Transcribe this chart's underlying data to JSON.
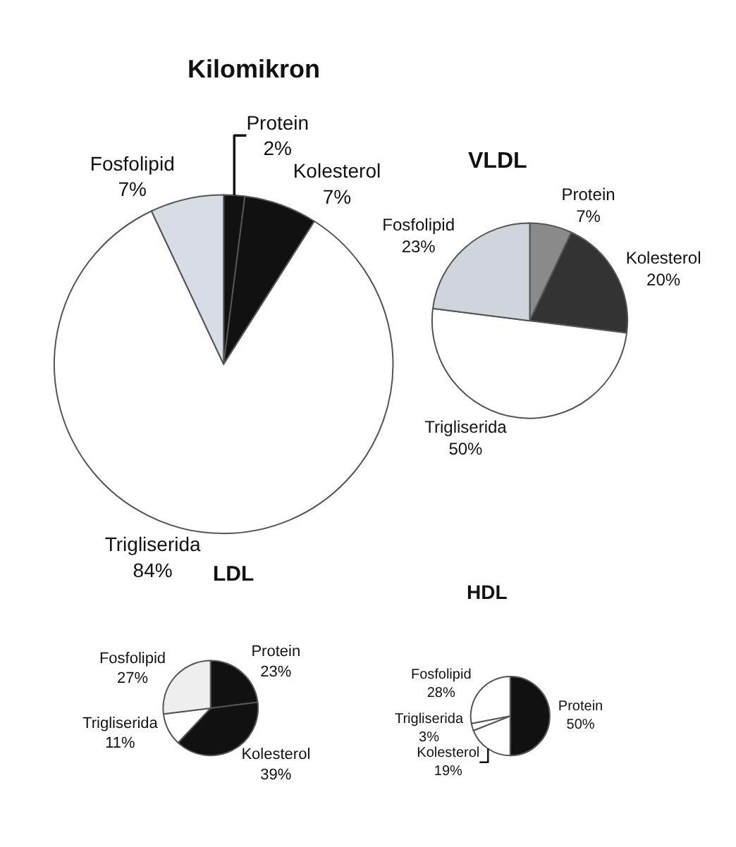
{
  "chart_data": [
    {
      "type": "pie",
      "title": "Kilomikron",
      "categories": [
        "Protein",
        "Kolesterol",
        "Trigliserida",
        "Fosfolipid"
      ],
      "values": [
        2,
        7,
        84,
        7
      ],
      "value_labels": [
        "2%",
        "7%",
        "84%",
        "7%"
      ],
      "colors": [
        "#111111",
        "#111111",
        "#ffffff",
        "#d8dce4"
      ]
    },
    {
      "type": "pie",
      "title": "VLDL",
      "categories": [
        "Protein",
        "Kolesterol",
        "Trigliserida",
        "Fosfolipid"
      ],
      "values": [
        7,
        20,
        50,
        23
      ],
      "value_labels": [
        "7%",
        "20%",
        "50%",
        "23%"
      ],
      "colors": [
        "#8a8a8a",
        "#333333",
        "#ffffff",
        "#d0d4dc"
      ]
    },
    {
      "type": "pie",
      "title": "LDL",
      "categories": [
        "Protein",
        "Kolesterol",
        "Trigliserida",
        "Fosfolipid"
      ],
      "values": [
        23,
        39,
        11,
        27
      ],
      "value_labels": [
        "23%",
        "39%",
        "11%",
        "27%"
      ],
      "colors": [
        "#111111",
        "#111111",
        "#ffffff",
        "#eeeeee"
      ]
    },
    {
      "type": "pie",
      "title": "HDL",
      "categories": [
        "Protein",
        "Kolesterol",
        "Trigliserida",
        "Fosfolipid"
      ],
      "values": [
        50,
        19,
        3,
        28
      ],
      "value_labels": [
        "50%",
        "19%",
        "3%",
        "28%"
      ],
      "colors": [
        "#111111",
        "#ffffff",
        "#ffffff",
        "#ffffff"
      ]
    }
  ]
}
